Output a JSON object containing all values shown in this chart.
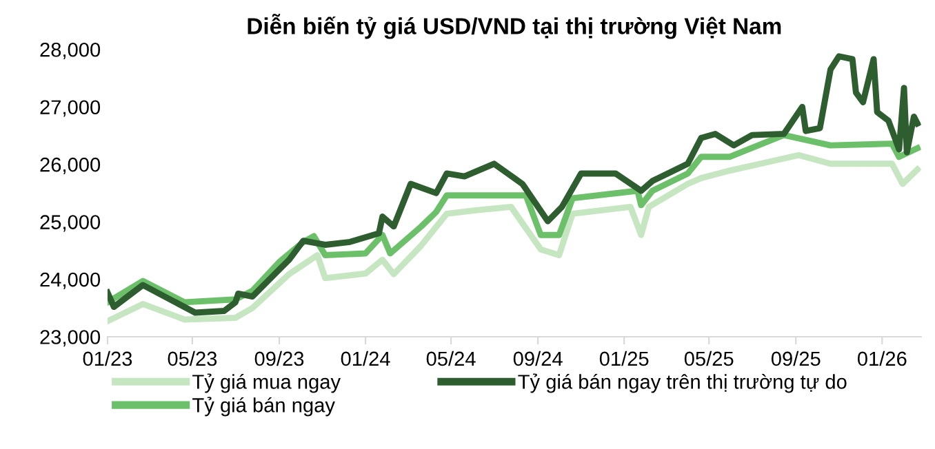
{
  "chart_data": {
    "type": "line",
    "title": "Diễn biến tỷ giá USD/VND tại thị trường Việt Nam",
    "xlim": [
      "2023-01-01",
      "2026-02-25"
    ],
    "xticks": [
      {
        "value": "2023-01-01",
        "label": "01/23"
      },
      {
        "value": "2023-05-01",
        "label": "05/23"
      },
      {
        "value": "2023-09-01",
        "label": "09/23"
      },
      {
        "value": "2024-01-01",
        "label": "01/24"
      },
      {
        "value": "2024-05-01",
        "label": "05/24"
      },
      {
        "value": "2024-09-01",
        "label": "09/24"
      },
      {
        "value": "2025-01-01",
        "label": "01/25"
      },
      {
        "value": "2025-05-01",
        "label": "05/25"
      },
      {
        "value": "2025-09-01",
        "label": "09/25"
      },
      {
        "value": "2026-01-01",
        "label": "01/26"
      }
    ],
    "ylim": [
      23000,
      28000
    ],
    "yticks": [
      {
        "value": 23000,
        "label": "23,000"
      },
      {
        "value": 24000,
        "label": "24,000"
      },
      {
        "value": 25000,
        "label": "25,000"
      },
      {
        "value": 26000,
        "label": "26,000"
      },
      {
        "value": 27000,
        "label": "27,000"
      },
      {
        "value": 28000,
        "label": "28,000"
      }
    ],
    "grid": false,
    "legend": "bottom",
    "marker": "none",
    "line_style": "solid",
    "series": [
      {
        "name": "Tỷ giá mua ngay",
        "color": "#c6e6c2",
        "x": [
          "2023-01-01",
          "2023-02-20",
          "2023-04-20",
          "2023-07-01",
          "2023-07-25",
          "2023-09-15",
          "2023-10-25",
          "2023-11-05",
          "2024-01-01",
          "2024-01-25",
          "2024-02-10",
          "2024-03-20",
          "2024-04-25",
          "2024-06-05",
          "2024-07-25",
          "2024-09-05",
          "2024-10-01",
          "2024-10-20",
          "2025-01-10",
          "2025-01-25",
          "2025-02-05",
          "2025-04-01",
          "2025-04-20",
          "2025-05-30",
          "2025-09-05",
          "2025-10-20",
          "2026-01-15",
          "2026-01-30",
          "2026-02-20"
        ],
        "values": [
          23270,
          23570,
          23300,
          23330,
          23500,
          24090,
          24420,
          24020,
          24100,
          24340,
          24090,
          24590,
          25140,
          25200,
          25260,
          24520,
          24420,
          25140,
          25260,
          24770,
          25260,
          25660,
          25760,
          25890,
          26160,
          26010,
          26010,
          25660,
          25910
        ]
      },
      {
        "name": "Tỷ giá bán ngay",
        "color": "#6cc06a",
        "x": [
          "2023-01-01",
          "2023-02-20",
          "2023-04-20",
          "2023-07-01",
          "2023-07-25",
          "2023-09-01",
          "2023-10-05",
          "2023-10-20",
          "2023-11-05",
          "2024-01-01",
          "2024-01-25",
          "2024-02-05",
          "2024-03-20",
          "2024-04-10",
          "2024-04-25",
          "2024-08-15",
          "2024-09-05",
          "2024-10-01",
          "2024-10-20",
          "2025-01-20",
          "2025-01-25",
          "2025-02-10",
          "2025-04-01",
          "2025-04-20",
          "2025-05-30",
          "2025-08-15",
          "2025-10-20",
          "2026-01-15",
          "2026-01-25",
          "2026-02-20"
        ],
        "values": [
          23600,
          23970,
          23600,
          23650,
          23800,
          24300,
          24650,
          24750,
          24420,
          24450,
          24770,
          24450,
          24920,
          25170,
          25460,
          25460,
          24770,
          24770,
          25410,
          25540,
          25290,
          25540,
          25840,
          26130,
          26130,
          26510,
          26330,
          26360,
          26130,
          26280
        ]
      },
      {
        "name": "Tỷ giá bán ngay trên thị trường tự do",
        "color": "#2e5e30",
        "x": [
          "2023-01-01",
          "2023-01-10",
          "2023-02-20",
          "2023-05-05",
          "2023-06-15",
          "2023-07-01",
          "2023-07-05",
          "2023-07-25",
          "2023-09-01",
          "2023-09-15",
          "2023-10-05",
          "2023-11-05",
          "2023-12-10",
          "2024-01-20",
          "2024-01-25",
          "2024-02-10",
          "2024-03-05",
          "2024-04-10",
          "2024-04-25",
          "2024-05-20",
          "2024-07-01",
          "2024-08-10",
          "2024-09-15",
          "2024-10-05",
          "2024-11-01",
          "2024-12-20",
          "2025-01-25",
          "2025-02-10",
          "2025-04-01",
          "2025-04-20",
          "2025-05-10",
          "2025-06-05",
          "2025-07-01",
          "2025-08-15",
          "2025-09-10",
          "2025-09-15",
          "2025-10-05",
          "2025-10-20",
          "2025-11-01",
          "2025-11-20",
          "2025-11-25",
          "2025-12-05",
          "2025-12-20",
          "2025-12-25",
          "2026-01-10",
          "2026-01-25",
          "2026-02-01",
          "2026-02-05",
          "2026-02-15",
          "2026-02-20"
        ],
        "values": [
          23770,
          23520,
          23900,
          23420,
          23450,
          23600,
          23750,
          23700,
          24170,
          24340,
          24670,
          24600,
          24650,
          24800,
          25090,
          24920,
          25660,
          25500,
          25840,
          25790,
          26010,
          25660,
          25010,
          25260,
          25840,
          25840,
          25540,
          25710,
          26010,
          26460,
          26530,
          26330,
          26510,
          26530,
          27000,
          26580,
          26630,
          27650,
          27880,
          27830,
          27250,
          27080,
          27830,
          26910,
          26760,
          26260,
          27330,
          26210,
          26830,
          26710
        ]
      }
    ]
  }
}
